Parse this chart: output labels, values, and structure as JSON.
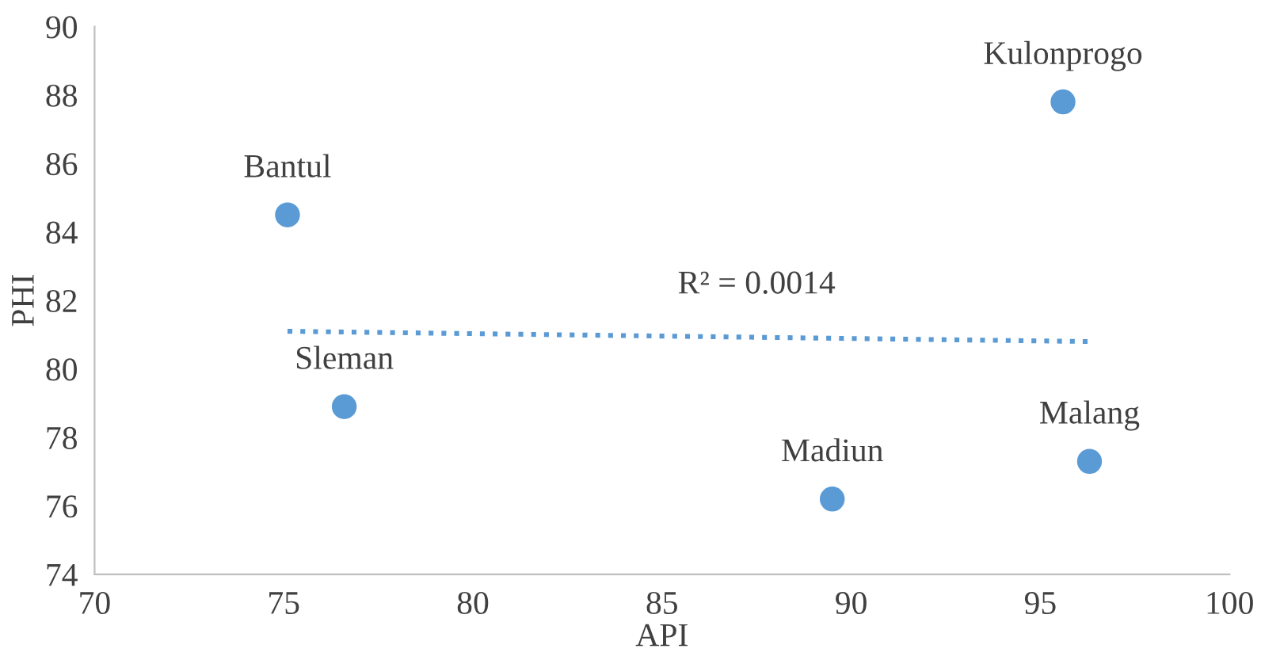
{
  "chart_data": {
    "type": "scatter",
    "xlabel": "API",
    "ylabel": "PHI",
    "series": [
      {
        "color": "#5b9bd5",
        "x": [
          75.1,
          76.6,
          89.5,
          96.3,
          95.6
        ],
        "values": [
          84.5,
          78.9,
          76.2,
          77.3,
          87.8
        ],
        "marker": "circle"
      },
      {
        "type": "line",
        "color": "#5b9bd5",
        "x": [
          75.1,
          96.3
        ],
        "values": [
          81.1,
          80.8
        ],
        "line_style": "dotted"
      }
    ],
    "annotations": [
      {
        "text": "Bantul",
        "x": 75.1,
        "y": 84.5
      },
      {
        "text": "Sleman",
        "x": 76.6,
        "y": 78.9
      },
      {
        "text": "Madiun",
        "x": 89.5,
        "y": 76.2
      },
      {
        "text": "Malang",
        "x": 96.3,
        "y": 77.3
      },
      {
        "text": "Kulonprogo",
        "x": 95.6,
        "y": 87.8
      },
      {
        "text": "R² = 0.0014",
        "x": 87.5,
        "y": 81.1
      }
    ],
    "xlim": [
      70,
      100
    ],
    "xticks": [
      70,
      75,
      80,
      85,
      90,
      95,
      100
    ],
    "ylim": [
      74,
      90
    ],
    "yticks": [
      74,
      76,
      78,
      80,
      82,
      84,
      86,
      88,
      90
    ],
    "grid": false,
    "legend": false
  }
}
